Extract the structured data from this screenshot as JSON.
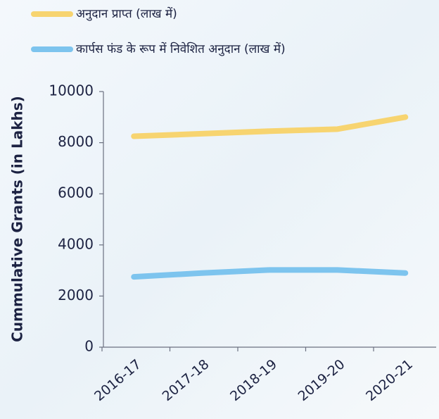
{
  "chart_data": {
    "type": "line",
    "ylabel": "Cummulative Grants (in Lakhs)",
    "categories": [
      "2016-17",
      "2017-18",
      "2018-19",
      "2019-20",
      "2020-21"
    ],
    "series": [
      {
        "name": "अनुदान प्राप्त (लाख में)",
        "color": "#f7d470",
        "values": [
          8250,
          8350,
          8450,
          8530,
          9000
        ]
      },
      {
        "name": "कार्पस फंड के रूप में निवेशित अनुदान (लाख में)",
        "color": "#7dc4ee",
        "values": [
          2750,
          2900,
          3020,
          3020,
          2900
        ]
      }
    ],
    "ylim": [
      0,
      10000
    ],
    "yticks": [
      0,
      2000,
      4000,
      6000,
      8000,
      10000
    ]
  }
}
